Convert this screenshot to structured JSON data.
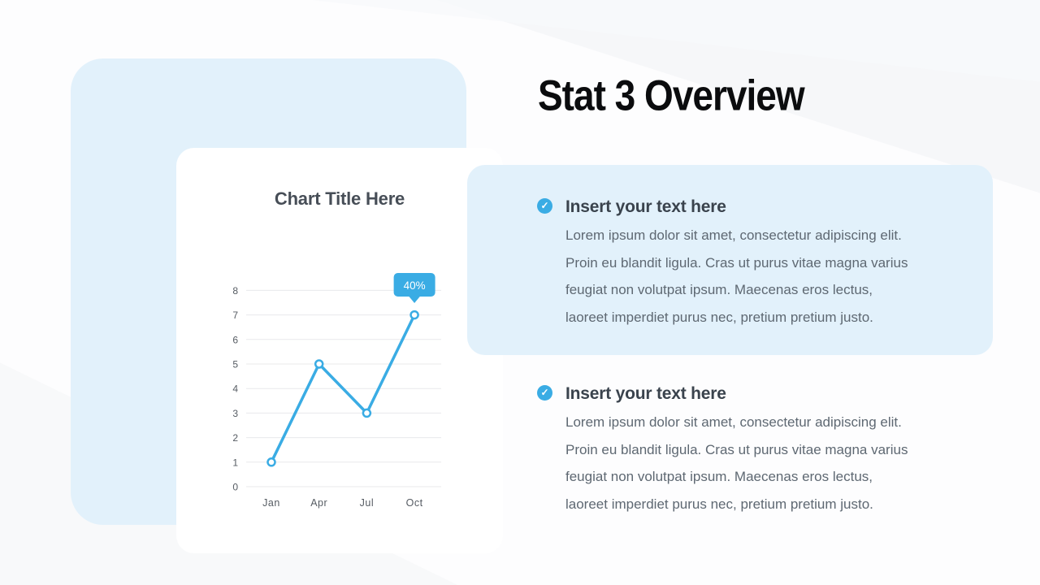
{
  "slide": {
    "title": "Stat 3 Overview"
  },
  "chart_card": {
    "title": "Chart Title Here"
  },
  "chart_data": {
    "type": "line",
    "title": "Chart Title Here",
    "categories": [
      "Jan",
      "Apr",
      "Jul",
      "Oct"
    ],
    "values": [
      1,
      5,
      3,
      7
    ],
    "y_ticks": [
      0,
      1,
      2,
      3,
      4,
      5,
      6,
      7,
      8
    ],
    "ylim": [
      0,
      8
    ],
    "xlabel": "",
    "ylabel": "",
    "grid": true,
    "legend": false,
    "annotation": {
      "label": "40%",
      "category": "Oct",
      "value": 7
    }
  },
  "sections": [
    {
      "icon": "check-circle-icon",
      "heading": "Insert your text here",
      "body": "Lorem ipsum dolor sit amet, consectetur adipiscing elit.\nProin eu blandit ligula. Cras ut purus vitae magna varius\nfeugiat non volutpat ipsum. Maecenas eros lectus,\nlaoreet imperdiet purus nec, pretium pretium justo.",
      "highlighted": true
    },
    {
      "icon": "check-circle-icon",
      "heading": "Insert your text here",
      "body": "Lorem ipsum dolor sit amet, consectetur adipiscing elit.\nProin eu blandit ligula. Cras ut purus vitae magna varius\nfeugiat non volutpat ipsum. Maecenas eros lectus,\nlaoreet imperdiet purus nec, pretium pretium justo.",
      "highlighted": false
    }
  ],
  "icons": {
    "check_glyph": "✓"
  },
  "colors": {
    "accent_blue": "#3AACE4",
    "light_blue_panel": "#E2F1FB",
    "title_black": "#0B0C0E",
    "chart_title_gray": "#474E57",
    "section_heading_gray": "#3A434D",
    "body_gray": "#5E6872",
    "tick_gray": "#555B62",
    "gridline_gray": "#E8E9EB",
    "card_white": "#FFFFFF"
  }
}
